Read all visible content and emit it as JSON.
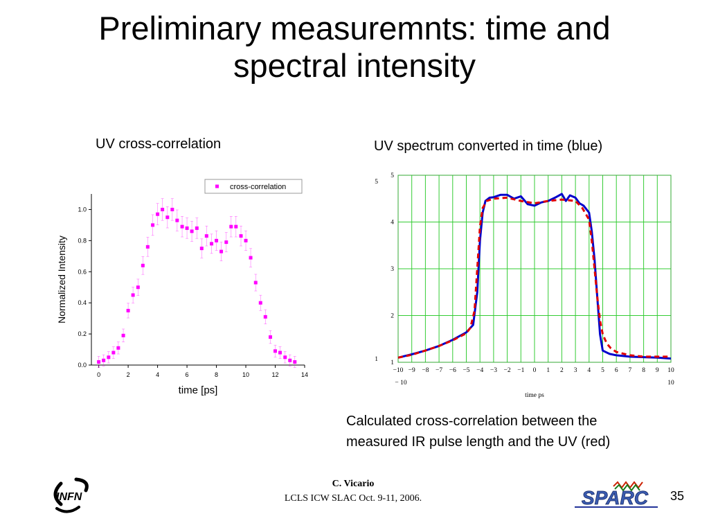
{
  "slide": {
    "title_line1": "Preliminary measuremnts: time and",
    "title_line2": "spectral intensity",
    "left_caption": "UV cross-correlation",
    "right_caption": "UV spectrum converted in time (blue)",
    "note_line1": "Calculated cross-correlation between the",
    "note_line2": "measured IR pulse length and the UV (red)",
    "footer_author": "C. Vicario",
    "footer_event": "LCLS ICW SLAC Oct. 9-11, 2006.",
    "page_number": "35",
    "logo_left": "INFN",
    "logo_right": "SPARC"
  },
  "chart_data": [
    {
      "type": "scatter",
      "xlabel": "time [ps]",
      "ylabel": "Normalized Intensity",
      "xlim": [
        -0.5,
        14
      ],
      "ylim": [
        0,
        1.1
      ],
      "x_ticks": [
        "0",
        "2",
        "4",
        "6",
        "8",
        "10",
        "12",
        "14"
      ],
      "y_ticks": [
        "0.0",
        "0.2",
        "0.4",
        "0.6",
        "0.8",
        "1.0"
      ],
      "legend": "top-right",
      "color": "#ff00ff",
      "series": [
        {
          "name": "cross-correlation",
          "x": [
            0.0,
            0.33,
            0.67,
            1.0,
            1.33,
            1.67,
            2.0,
            2.33,
            2.67,
            3.0,
            3.33,
            3.67,
            4.0,
            4.33,
            4.67,
            5.0,
            5.33,
            5.67,
            6.0,
            6.33,
            6.67,
            7.0,
            7.33,
            7.67,
            8.0,
            8.33,
            8.67,
            9.0,
            9.33,
            9.67,
            10.0,
            10.33,
            10.67,
            11.0,
            11.33,
            11.67,
            12.0,
            12.33,
            12.67,
            13.0,
            13.33
          ],
          "y": [
            0.02,
            0.03,
            0.05,
            0.08,
            0.11,
            0.19,
            0.35,
            0.45,
            0.5,
            0.64,
            0.76,
            0.9,
            0.97,
            1.0,
            0.95,
            1.0,
            0.93,
            0.89,
            0.88,
            0.86,
            0.88,
            0.75,
            0.83,
            0.78,
            0.8,
            0.73,
            0.79,
            0.89,
            0.89,
            0.83,
            0.8,
            0.69,
            0.53,
            0.4,
            0.31,
            0.18,
            0.09,
            0.08,
            0.05,
            0.03,
            0.02
          ]
        }
      ]
    },
    {
      "type": "line",
      "xlabel": "time ps",
      "ylabel": "",
      "xlim": [
        -10,
        10
      ],
      "ylim": [
        1,
        5
      ],
      "x_ticks": [
        "−10",
        "−9",
        "−8",
        "−7",
        "−6",
        "−5",
        "−4",
        "−3",
        "−2",
        "−1",
        "0",
        "1",
        "2",
        "3",
        "4",
        "5",
        "6",
        "7",
        "8",
        "9",
        "10"
      ],
      "y_ticks": [
        "1",
        "2",
        "3",
        "4",
        "5"
      ],
      "x_range_labels": [
        "− 10",
        "10"
      ],
      "y_range_labels": [
        "1",
        "5"
      ],
      "grid": true,
      "series": [
        {
          "color": "#0000cc",
          "style": "solid",
          "x": [
            -10,
            -9,
            -8,
            -7,
            -6,
            -5,
            -4.5,
            -4.2,
            -4.0,
            -3.8,
            -3.6,
            -3.3,
            -3.0,
            -2.5,
            -2.0,
            -1.5,
            -1.0,
            -0.5,
            0.0,
            0.5,
            1.0,
            1.5,
            2.0,
            2.3,
            2.6,
            3.0,
            3.3,
            3.6,
            4.0,
            4.2,
            4.4,
            4.6,
            4.8,
            5.0,
            5.5,
            6.0,
            7.0,
            8.0,
            9.0,
            10.0
          ],
          "y": [
            1.1,
            1.17,
            1.25,
            1.35,
            1.48,
            1.64,
            1.8,
            2.5,
            3.6,
            4.2,
            4.45,
            4.52,
            4.53,
            4.58,
            4.58,
            4.5,
            4.55,
            4.38,
            4.35,
            4.42,
            4.45,
            4.52,
            4.6,
            4.45,
            4.57,
            4.52,
            4.4,
            4.35,
            4.2,
            3.8,
            3.2,
            2.4,
            1.6,
            1.25,
            1.18,
            1.15,
            1.12,
            1.11,
            1.1,
            1.08
          ]
        },
        {
          "color": "#e00000",
          "style": "dashed",
          "x": [
            -10,
            -9,
            -8,
            -7,
            -6,
            -5,
            -4.7,
            -4.4,
            -4.2,
            -4.0,
            -3.8,
            -3.5,
            -3.0,
            -2.0,
            -1.0,
            0.0,
            1.0,
            2.0,
            3.0,
            3.5,
            4.0,
            4.2,
            4.4,
            4.6,
            4.8,
            5.0,
            5.3,
            5.6,
            6.0,
            7.0,
            8.0,
            9.0,
            10.0
          ],
          "y": [
            1.1,
            1.16,
            1.25,
            1.35,
            1.47,
            1.62,
            1.74,
            2.1,
            3.0,
            3.9,
            4.3,
            4.45,
            4.5,
            4.52,
            4.45,
            4.4,
            4.45,
            4.48,
            4.45,
            4.3,
            4.05,
            3.6,
            3.0,
            2.4,
            1.9,
            1.6,
            1.4,
            1.3,
            1.22,
            1.15,
            1.12,
            1.12,
            1.12
          ]
        }
      ]
    }
  ]
}
